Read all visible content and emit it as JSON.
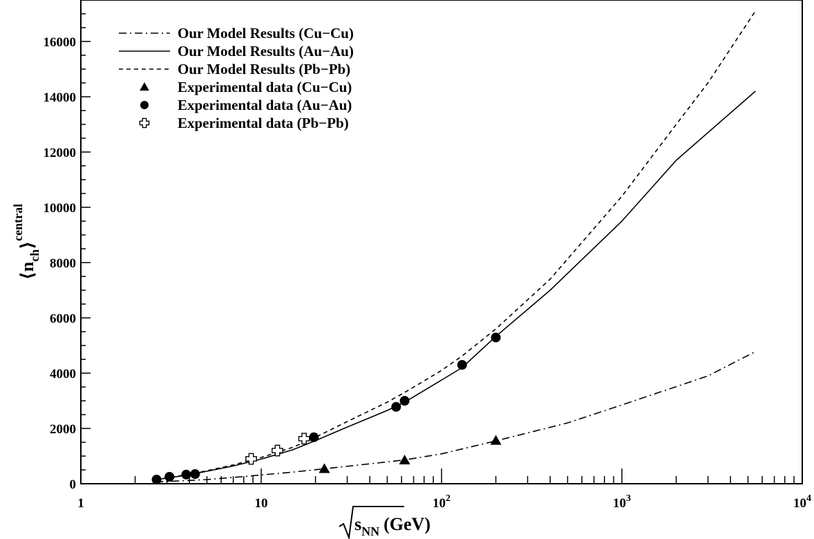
{
  "chart_data": {
    "type": "line",
    "title": "",
    "xlabel": {
      "base": "s",
      "subscript": "NN",
      "unit": "(GeV)"
    },
    "ylabel": {
      "base": "n",
      "subscript": "ch",
      "superscript": "central"
    },
    "xscale": "log",
    "xlim": [
      1,
      10000
    ],
    "ylim": [
      0,
      17500
    ],
    "x_ticks": [
      {
        "value": 1,
        "label": "1",
        "exp": ""
      },
      {
        "value": 10,
        "label": "10",
        "exp": ""
      },
      {
        "value": 100,
        "label": "10",
        "exp": "2"
      },
      {
        "value": 1000,
        "label": "10",
        "exp": "3"
      },
      {
        "value": 10000,
        "label": "10",
        "exp": "4"
      }
    ],
    "y_ticks": [
      {
        "value": 0,
        "label": "0"
      },
      {
        "value": 2000,
        "label": "2000"
      },
      {
        "value": 4000,
        "label": "4000"
      },
      {
        "value": 6000,
        "label": "6000"
      },
      {
        "value": 8000,
        "label": "8000"
      },
      {
        "value": 10000,
        "label": "10000"
      },
      {
        "value": 12000,
        "label": "12000"
      },
      {
        "value": 14000,
        "label": "14000"
      },
      {
        "value": 16000,
        "label": "16000"
      }
    ],
    "grid": false,
    "legend_position": "top-left",
    "series": [
      {
        "name": "Our Model Results (Cu−Cu)",
        "kind": "line",
        "dash": "dashdot",
        "points": [
          [
            2.6,
            60
          ],
          [
            3.5,
            100
          ],
          [
            5,
            150
          ],
          [
            8,
            260
          ],
          [
            15,
            420
          ],
          [
            22.4,
            540
          ],
          [
            40,
            720
          ],
          [
            62.4,
            860
          ],
          [
            100,
            1080
          ],
          [
            200,
            1550
          ],
          [
            500,
            2200
          ],
          [
            1000,
            2850
          ],
          [
            3000,
            3900
          ],
          [
            5500,
            4780
          ]
        ]
      },
      {
        "name": "Our Model Results (Au−Au)",
        "kind": "line",
        "dash": "solid",
        "points": [
          [
            2.6,
            150
          ],
          [
            3.0,
            200
          ],
          [
            4.0,
            330
          ],
          [
            5,
            450
          ],
          [
            7,
            640
          ],
          [
            10,
            890
          ],
          [
            15,
            1230
          ],
          [
            20,
            1560
          ],
          [
            30,
            2050
          ],
          [
            50,
            2650
          ],
          [
            62.4,
            2950
          ],
          [
            100,
            3750
          ],
          [
            130,
            4200
          ],
          [
            200,
            5330
          ],
          [
            400,
            7000
          ],
          [
            1000,
            9500
          ],
          [
            2000,
            11700
          ],
          [
            5500,
            14200
          ]
        ]
      },
      {
        "name": "Our Model Results (Pb−Pb)",
        "kind": "line",
        "dash": "dashed",
        "points": [
          [
            2.6,
            160
          ],
          [
            3.0,
            210
          ],
          [
            4.0,
            345
          ],
          [
            5,
            470
          ],
          [
            7,
            680
          ],
          [
            10,
            950
          ],
          [
            15,
            1320
          ],
          [
            20,
            1680
          ],
          [
            30,
            2250
          ],
          [
            50,
            2950
          ],
          [
            62.4,
            3300
          ],
          [
            100,
            4100
          ],
          [
            130,
            4620
          ],
          [
            200,
            5600
          ],
          [
            400,
            7400
          ],
          [
            1000,
            10400
          ],
          [
            2000,
            13000
          ],
          [
            3000,
            14500
          ],
          [
            5500,
            17100
          ]
        ]
      },
      {
        "name": "Experimental data (Cu−Cu)",
        "kind": "points",
        "marker": "triangle",
        "points": [
          [
            22.4,
            540
          ],
          [
            62.4,
            850
          ],
          [
            200,
            1560
          ]
        ]
      },
      {
        "name": "Experimental data (Au−Au)",
        "kind": "points",
        "marker": "circle",
        "points": [
          [
            2.63,
            150
          ],
          [
            3.1,
            250
          ],
          [
            3.84,
            330
          ],
          [
            4.3,
            350
          ],
          [
            19.6,
            1680
          ],
          [
            56,
            2780
          ],
          [
            62.4,
            3000
          ],
          [
            130,
            4300
          ],
          [
            200,
            5290
          ]
        ]
      },
      {
        "name": "Experimental data (Pb−Pb)",
        "kind": "points",
        "marker": "open-cross",
        "points": [
          [
            8.8,
            900
          ],
          [
            12.3,
            1200
          ],
          [
            17.3,
            1630
          ]
        ]
      }
    ]
  }
}
